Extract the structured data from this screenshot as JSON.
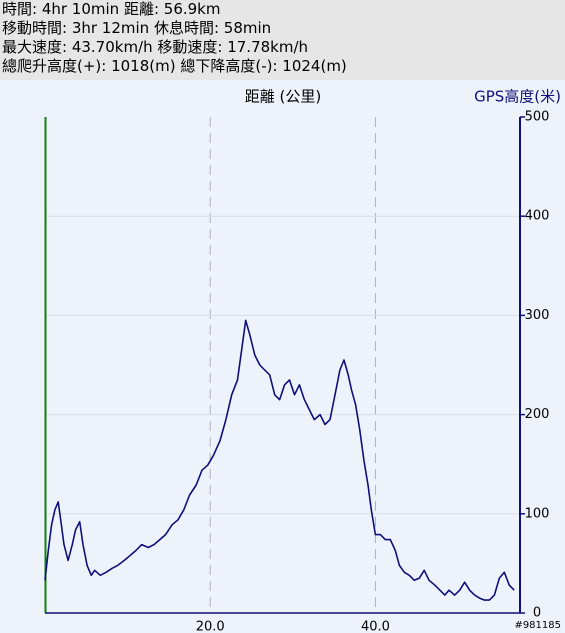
{
  "header": {
    "lines": [
      "時間: 4hr 10min  距離: 56.9km",
      "移動時間: 3hr 12min  休息時間: 58min",
      "最大速度: 43.70km/h  移動速度: 17.78km/h",
      "總爬升高度(+): 1018(m)  總下降高度(-): 1024(m)"
    ]
  },
  "watermark": "#981185",
  "chart_data": {
    "type": "line",
    "x_label": "距離 (公里)",
    "y_label": "GPS高度(米)",
    "xlim": [
      0,
      57.5
    ],
    "ylim": [
      0,
      500
    ],
    "xticks": [
      {
        "value": 20,
        "label": "20.0"
      },
      {
        "value": 40,
        "label": "40.0"
      }
    ],
    "yticks": [
      0,
      100,
      200,
      300,
      400,
      500
    ],
    "grid": true,
    "series": [
      {
        "name": "GPS高度",
        "color": "#10107a",
        "x": [
          0,
          0.4,
          0.8,
          1.2,
          1.6,
          1.9,
          2.3,
          2.8,
          3.3,
          3.7,
          4.2,
          4.6,
          5.1,
          5.6,
          6.0,
          6.7,
          7.4,
          8.1,
          8.8,
          9.6,
          10.3,
          11.0,
          11.7,
          12.5,
          13.2,
          13.9,
          14.6,
          15.4,
          16.1,
          16.8,
          17.5,
          18.3,
          19.0,
          19.7,
          20.4,
          21.2,
          21.9,
          22.6,
          23.3,
          23.8,
          24.3,
          24.8,
          25.4,
          26.0,
          26.6,
          27.2,
          27.8,
          28.4,
          29.0,
          29.6,
          30.2,
          30.8,
          31.4,
          32.0,
          32.6,
          33.3,
          33.9,
          34.5,
          35.1,
          35.7,
          36.2,
          36.7,
          37.1,
          37.6,
          38.1,
          38.6,
          39.1,
          39.5,
          40.0,
          40.6,
          41.2,
          41.8,
          42.4,
          42.9,
          43.5,
          44.1,
          44.7,
          45.3,
          45.9,
          46.5,
          47.2,
          47.8,
          48.4,
          48.9,
          49.6,
          50.2,
          50.8,
          51.4,
          52.0,
          52.6,
          53.2,
          53.8,
          54.4,
          55.0,
          55.6,
          56.2,
          56.8
        ],
        "values": [
          33,
          63,
          89,
          104,
          112,
          94,
          69,
          53,
          69,
          84,
          92,
          69,
          48,
          38,
          43,
          38,
          41,
          45,
          48,
          53,
          58,
          63,
          69,
          66,
          69,
          74,
          79,
          89,
          94,
          104,
          119,
          129,
          144,
          149,
          159,
          174,
          195,
          220,
          235,
          265,
          295,
          280,
          260,
          250,
          245,
          240,
          220,
          215,
          230,
          235,
          220,
          230,
          215,
          205,
          195,
          200,
          190,
          195,
          220,
          245,
          255,
          240,
          225,
          210,
          185,
          154,
          129,
          104,
          79,
          79,
          74,
          74,
          63,
          48,
          41,
          38,
          33,
          35,
          43,
          33,
          28,
          23,
          18,
          23,
          18,
          23,
          31,
          23,
          18,
          15,
          13,
          13,
          18,
          35,
          41,
          28,
          23
        ]
      }
    ]
  }
}
